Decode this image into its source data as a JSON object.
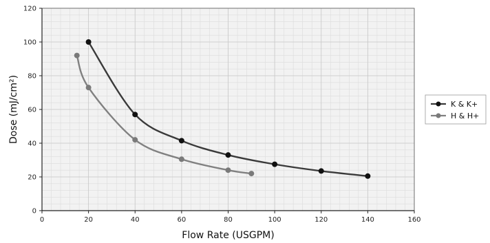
{
  "chart_data": {
    "type": "line",
    "title": "",
    "xlabel": "Flow Rate (USGPM)",
    "ylabel": "Dose (mJ/cm²)",
    "xlim": [
      0,
      160
    ],
    "ylim": [
      0,
      120
    ],
    "x_ticks": [
      "0",
      "20",
      "40",
      "60",
      "80",
      "100",
      "120",
      "140",
      "160"
    ],
    "y_ticks": [
      "0",
      "20",
      "40",
      "60",
      "80",
      "100",
      "120"
    ],
    "grid": true,
    "legend_position": "right",
    "series": [
      {
        "name": "K & K+",
        "color": "#3a3a3a",
        "marker_color": "#111111",
        "points": [
          {
            "x": 20,
            "y": 100
          },
          {
            "x": 40,
            "y": 57
          },
          {
            "x": 60,
            "y": 41.5
          },
          {
            "x": 80,
            "y": 33
          },
          {
            "x": 100,
            "y": 27.5
          },
          {
            "x": 120,
            "y": 23.5
          },
          {
            "x": 140,
            "y": 20.5
          }
        ]
      },
      {
        "name": "H & H+",
        "color": "#808080",
        "marker_color": "#7a7a7a",
        "points": [
          {
            "x": 15,
            "y": 92
          },
          {
            "x": 20,
            "y": 73
          },
          {
            "x": 40,
            "y": 42
          },
          {
            "x": 60,
            "y": 30.5
          },
          {
            "x": 80,
            "y": 24
          },
          {
            "x": 90,
            "y": 22
          }
        ]
      }
    ]
  }
}
